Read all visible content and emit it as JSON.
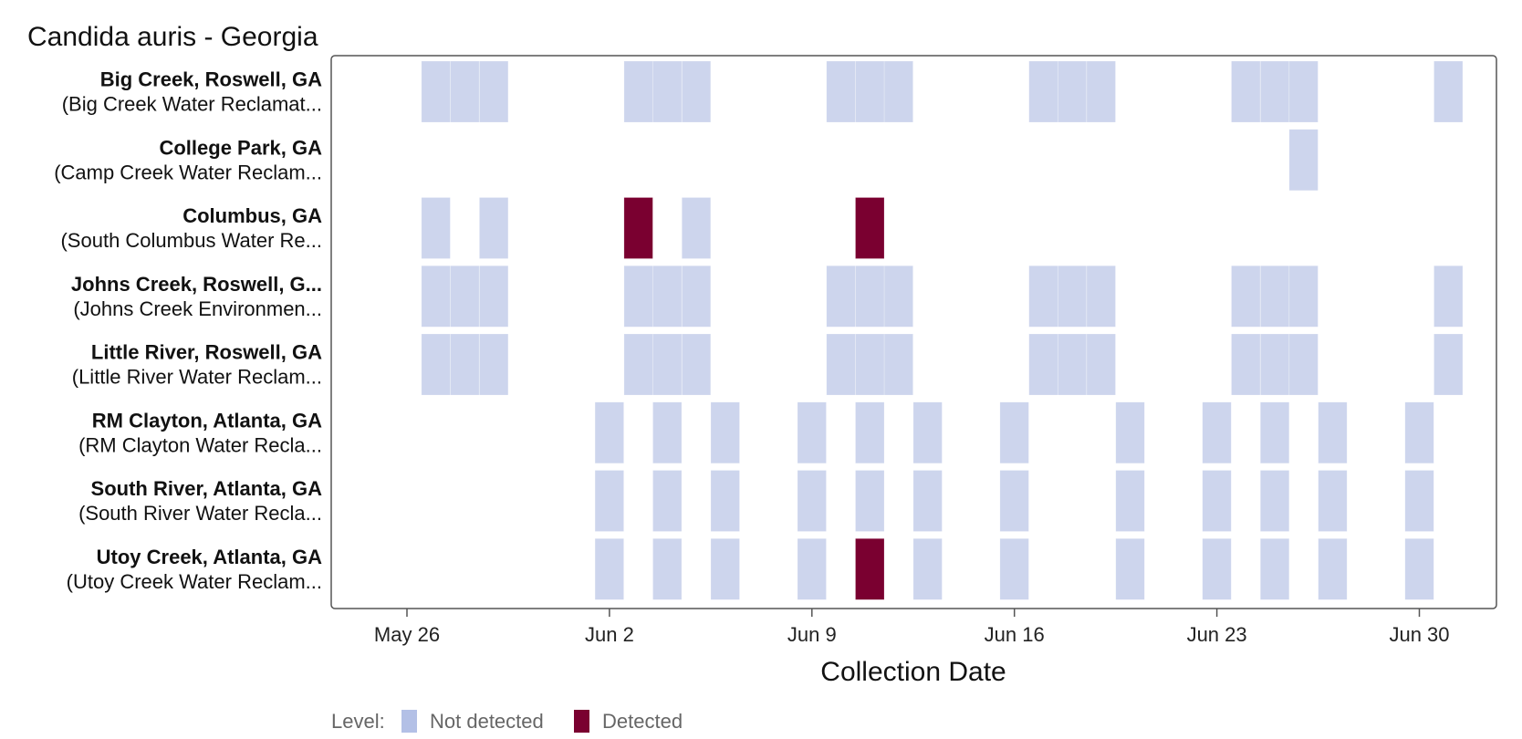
{
  "chart_data": {
    "type": "heatmap",
    "title": "Candida auris - Georgia",
    "xlabel": "Collection Date",
    "ylabel": "",
    "x_axis": {
      "min": "2024-05-23",
      "max": "2024-07-03",
      "ticks": [
        {
          "date": "2024-05-26",
          "label": "May 26"
        },
        {
          "date": "2024-06-02",
          "label": "Jun 2"
        },
        {
          "date": "2024-06-09",
          "label": "Jun 9"
        },
        {
          "date": "2024-06-16",
          "label": "Jun 16"
        },
        {
          "date": "2024-06-23",
          "label": "Jun 23"
        },
        {
          "date": "2024-06-30",
          "label": "Jun 30"
        }
      ]
    },
    "legend": {
      "title": "Level:",
      "position": "bottom-left",
      "items": [
        {
          "key": "not_detected",
          "label": "Not detected"
        },
        {
          "key": "detected",
          "label": "Detected"
        }
      ]
    },
    "colors": {
      "not_detected": "#cdd5ed",
      "not_detected_legend": "#b3c0e6",
      "detected": "#7a0030",
      "frame": "#555555"
    },
    "rows": [
      {
        "name": "Big Creek, Roswell, GA",
        "sub": "(Big Creek Water Reclamat...",
        "samples": [
          {
            "date": "2024-05-27",
            "level": "not_detected"
          },
          {
            "date": "2024-05-28",
            "level": "not_detected"
          },
          {
            "date": "2024-05-29",
            "level": "not_detected"
          },
          {
            "date": "2024-06-03",
            "level": "not_detected"
          },
          {
            "date": "2024-06-04",
            "level": "not_detected"
          },
          {
            "date": "2024-06-05",
            "level": "not_detected"
          },
          {
            "date": "2024-06-10",
            "level": "not_detected"
          },
          {
            "date": "2024-06-11",
            "level": "not_detected"
          },
          {
            "date": "2024-06-12",
            "level": "not_detected"
          },
          {
            "date": "2024-06-17",
            "level": "not_detected"
          },
          {
            "date": "2024-06-18",
            "level": "not_detected"
          },
          {
            "date": "2024-06-19",
            "level": "not_detected"
          },
          {
            "date": "2024-06-24",
            "level": "not_detected"
          },
          {
            "date": "2024-06-25",
            "level": "not_detected"
          },
          {
            "date": "2024-06-26",
            "level": "not_detected"
          },
          {
            "date": "2024-07-01",
            "level": "not_detected"
          }
        ]
      },
      {
        "name": "College Park, GA",
        "sub": "(Camp Creek Water Reclam...",
        "samples": [
          {
            "date": "2024-06-26",
            "level": "not_detected"
          }
        ]
      },
      {
        "name": "Columbus, GA",
        "sub": "(South Columbus Water Re...",
        "samples": [
          {
            "date": "2024-05-27",
            "level": "not_detected"
          },
          {
            "date": "2024-05-29",
            "level": "not_detected"
          },
          {
            "date": "2024-06-03",
            "level": "detected"
          },
          {
            "date": "2024-06-05",
            "level": "not_detected"
          },
          {
            "date": "2024-06-11",
            "level": "detected"
          }
        ]
      },
      {
        "name": "Johns Creek, Roswell, G...",
        "sub": "(Johns Creek Environmen...",
        "samples": [
          {
            "date": "2024-05-27",
            "level": "not_detected"
          },
          {
            "date": "2024-05-28",
            "level": "not_detected"
          },
          {
            "date": "2024-05-29",
            "level": "not_detected"
          },
          {
            "date": "2024-06-03",
            "level": "not_detected"
          },
          {
            "date": "2024-06-04",
            "level": "not_detected"
          },
          {
            "date": "2024-06-05",
            "level": "not_detected"
          },
          {
            "date": "2024-06-10",
            "level": "not_detected"
          },
          {
            "date": "2024-06-11",
            "level": "not_detected"
          },
          {
            "date": "2024-06-12",
            "level": "not_detected"
          },
          {
            "date": "2024-06-17",
            "level": "not_detected"
          },
          {
            "date": "2024-06-18",
            "level": "not_detected"
          },
          {
            "date": "2024-06-19",
            "level": "not_detected"
          },
          {
            "date": "2024-06-24",
            "level": "not_detected"
          },
          {
            "date": "2024-06-25",
            "level": "not_detected"
          },
          {
            "date": "2024-06-26",
            "level": "not_detected"
          },
          {
            "date": "2024-07-01",
            "level": "not_detected"
          }
        ]
      },
      {
        "name": "Little River, Roswell, GA",
        "sub": "(Little River Water Reclam...",
        "samples": [
          {
            "date": "2024-05-27",
            "level": "not_detected"
          },
          {
            "date": "2024-05-28",
            "level": "not_detected"
          },
          {
            "date": "2024-05-29",
            "level": "not_detected"
          },
          {
            "date": "2024-06-03",
            "level": "not_detected"
          },
          {
            "date": "2024-06-04",
            "level": "not_detected"
          },
          {
            "date": "2024-06-05",
            "level": "not_detected"
          },
          {
            "date": "2024-06-10",
            "level": "not_detected"
          },
          {
            "date": "2024-06-11",
            "level": "not_detected"
          },
          {
            "date": "2024-06-12",
            "level": "not_detected"
          },
          {
            "date": "2024-06-17",
            "level": "not_detected"
          },
          {
            "date": "2024-06-18",
            "level": "not_detected"
          },
          {
            "date": "2024-06-19",
            "level": "not_detected"
          },
          {
            "date": "2024-06-24",
            "level": "not_detected"
          },
          {
            "date": "2024-06-25",
            "level": "not_detected"
          },
          {
            "date": "2024-06-26",
            "level": "not_detected"
          },
          {
            "date": "2024-07-01",
            "level": "not_detected"
          }
        ]
      },
      {
        "name": "RM Clayton, Atlanta, GA",
        "sub": "(RM Clayton Water Recla...",
        "samples": [
          {
            "date": "2024-06-02",
            "level": "not_detected"
          },
          {
            "date": "2024-06-04",
            "level": "not_detected"
          },
          {
            "date": "2024-06-06",
            "level": "not_detected"
          },
          {
            "date": "2024-06-09",
            "level": "not_detected"
          },
          {
            "date": "2024-06-11",
            "level": "not_detected"
          },
          {
            "date": "2024-06-13",
            "level": "not_detected"
          },
          {
            "date": "2024-06-16",
            "level": "not_detected"
          },
          {
            "date": "2024-06-20",
            "level": "not_detected"
          },
          {
            "date": "2024-06-23",
            "level": "not_detected"
          },
          {
            "date": "2024-06-25",
            "level": "not_detected"
          },
          {
            "date": "2024-06-27",
            "level": "not_detected"
          },
          {
            "date": "2024-06-30",
            "level": "not_detected"
          }
        ]
      },
      {
        "name": "South River, Atlanta, GA",
        "sub": "(South River Water Recla...",
        "samples": [
          {
            "date": "2024-06-02",
            "level": "not_detected"
          },
          {
            "date": "2024-06-04",
            "level": "not_detected"
          },
          {
            "date": "2024-06-06",
            "level": "not_detected"
          },
          {
            "date": "2024-06-09",
            "level": "not_detected"
          },
          {
            "date": "2024-06-11",
            "level": "not_detected"
          },
          {
            "date": "2024-06-13",
            "level": "not_detected"
          },
          {
            "date": "2024-06-16",
            "level": "not_detected"
          },
          {
            "date": "2024-06-20",
            "level": "not_detected"
          },
          {
            "date": "2024-06-23",
            "level": "not_detected"
          },
          {
            "date": "2024-06-25",
            "level": "not_detected"
          },
          {
            "date": "2024-06-27",
            "level": "not_detected"
          },
          {
            "date": "2024-06-30",
            "level": "not_detected"
          }
        ]
      },
      {
        "name": "Utoy Creek, Atlanta, GA",
        "sub": "(Utoy Creek Water Reclam...",
        "samples": [
          {
            "date": "2024-06-02",
            "level": "not_detected"
          },
          {
            "date": "2024-06-04",
            "level": "not_detected"
          },
          {
            "date": "2024-06-06",
            "level": "not_detected"
          },
          {
            "date": "2024-06-09",
            "level": "not_detected"
          },
          {
            "date": "2024-06-11",
            "level": "detected"
          },
          {
            "date": "2024-06-13",
            "level": "not_detected"
          },
          {
            "date": "2024-06-16",
            "level": "not_detected"
          },
          {
            "date": "2024-06-20",
            "level": "not_detected"
          },
          {
            "date": "2024-06-23",
            "level": "not_detected"
          },
          {
            "date": "2024-06-25",
            "level": "not_detected"
          },
          {
            "date": "2024-06-27",
            "level": "not_detected"
          },
          {
            "date": "2024-06-30",
            "level": "not_detected"
          }
        ]
      }
    ]
  }
}
